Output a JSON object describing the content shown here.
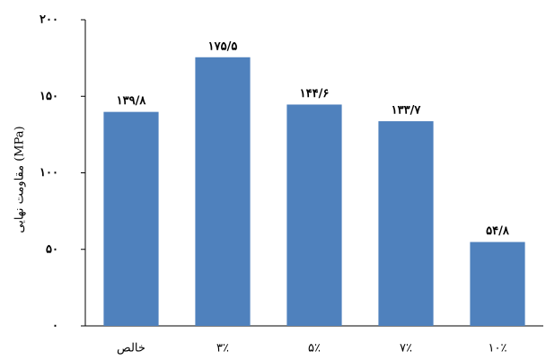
{
  "chart_data": {
    "type": "bar",
    "y_label": "مقاومت نهایی  (MPa)",
    "categories": [
      "خالص",
      "۳٪",
      "۵٪",
      "۷٪",
      "۱۰٪"
    ],
    "values": [
      139.8,
      175.5,
      144.6,
      133.7,
      54.8
    ],
    "value_labels": [
      "۱۳۹/۸",
      "۱۷۵/۵",
      "۱۴۴/۶",
      "۱۳۳/۷",
      "۵۴/۸"
    ],
    "color": "#4f81bd",
    "ylim": [
      0,
      200
    ],
    "yticks": [
      {
        "value": 0,
        "label": "۰"
      },
      {
        "value": 50,
        "label": "۵۰"
      },
      {
        "value": 100,
        "label": "۱۰۰"
      },
      {
        "value": 150,
        "label": "۱۵۰"
      },
      {
        "value": 200,
        "label": "۲۰۰"
      }
    ],
    "grid": false
  }
}
